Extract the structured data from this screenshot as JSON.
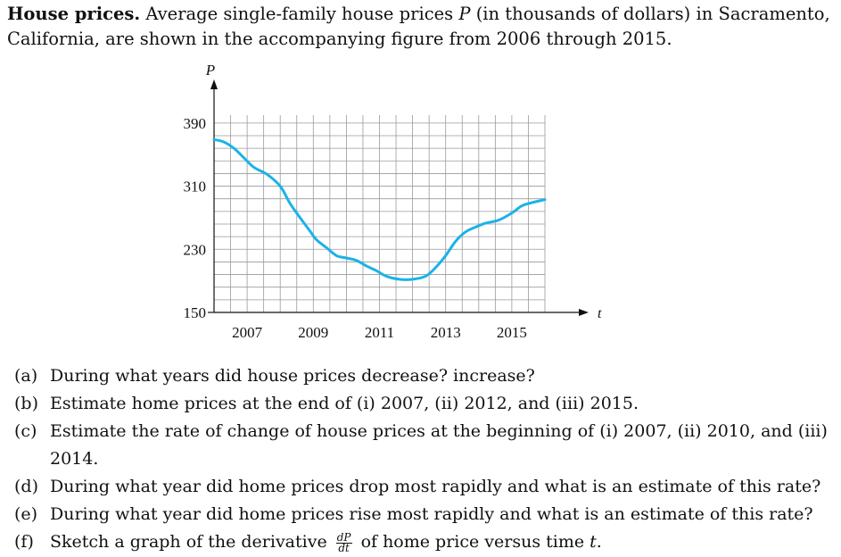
{
  "problem": {
    "title": "House prices.",
    "text_before_var": "Average single-family house prices",
    "var": "P",
    "text_after_var": "(in thousands of dollars) in Sacramento, California, are shown in the accompanying figure from 2006 through 2015."
  },
  "chart_data": {
    "type": "line",
    "title": "",
    "xlabel": "t",
    "ylabel": "P",
    "xlim": [
      2006,
      2016
    ],
    "ylim": [
      150,
      400
    ],
    "x_ticks": [
      2007,
      2009,
      2011,
      2013,
      2015
    ],
    "y_ticks": [
      150,
      230,
      310,
      390
    ],
    "grid": true,
    "x_grid_step": 0.5,
    "y_grid_step": 16,
    "series": [
      {
        "name": "P",
        "color": "#1ab3e6",
        "x": [
          2006.0,
          2006.3,
          2006.6,
          2006.9,
          2007.2,
          2007.6,
          2008.0,
          2008.3,
          2008.6,
          2008.9,
          2009.1,
          2009.4,
          2009.7,
          2010.0,
          2010.3,
          2010.6,
          2010.9,
          2011.2,
          2011.6,
          2012.0,
          2012.4,
          2012.7,
          2013.0,
          2013.3,
          2013.6,
          2013.9,
          2014.2,
          2014.6,
          2015.0,
          2015.3,
          2015.6,
          2016.0
        ],
        "values": [
          369,
          366,
          358,
          346,
          334,
          325,
          310,
          288,
          270,
          253,
          242,
          232,
          222,
          219,
          216,
          209,
          203,
          196,
          192,
          192,
          196,
          207,
          222,
          240,
          252,
          258,
          263,
          267,
          276,
          285,
          289,
          293
        ]
      }
    ]
  },
  "questions": [
    {
      "label": "(a)",
      "text": "During what years did house prices decrease? increase?"
    },
    {
      "label": "(b)",
      "text": "Estimate home prices at the end of (i) 2007, (ii) 2012, and (iii) 2015."
    },
    {
      "label": "(c)",
      "text": "Estimate the rate of change of house prices at the beginning of (i) 2007, (ii) 2010, and (iii) 2014."
    },
    {
      "label": "(d)",
      "text": "During what year did home prices drop most rapidly and what is an estimate of this rate?"
    },
    {
      "label": "(e)",
      "text": "During what year did home prices rise most rapidly and what is an estimate of this rate?"
    },
    {
      "label": "(f)",
      "text_before": "Sketch a graph of the derivative",
      "frac_num": "dP",
      "frac_den": "dt",
      "text_after": "of home price versus time",
      "var": "t",
      "end": "."
    }
  ]
}
